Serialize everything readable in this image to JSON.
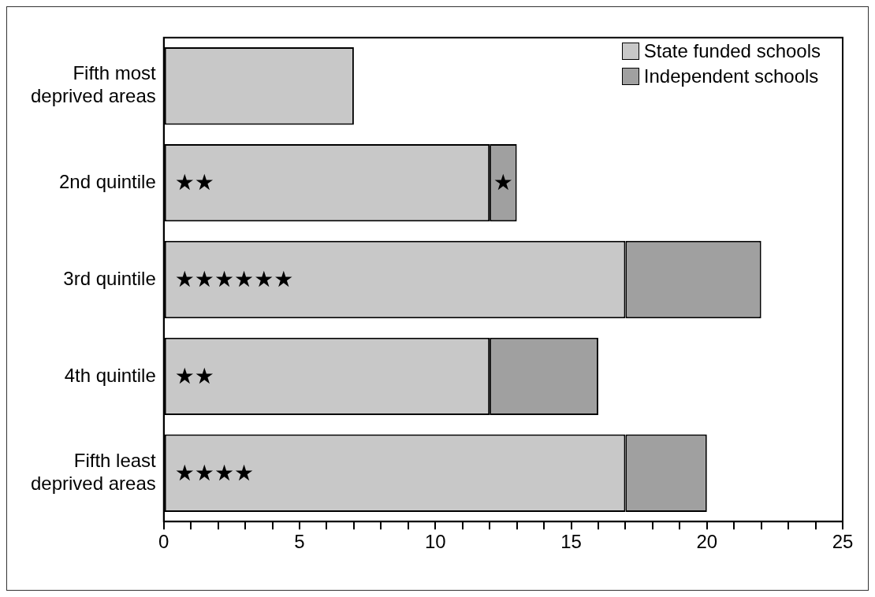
{
  "chart_data": {
    "type": "bar",
    "orientation": "horizontal",
    "stacked": true,
    "categories": [
      "Fifth most deprived areas",
      "2nd quintile",
      "3rd quintile",
      "4th quintile",
      "Fifth least deprived areas"
    ],
    "series": [
      {
        "name": "State funded schools",
        "color": "#c8c8c8",
        "values": [
          7,
          12,
          17,
          12,
          17
        ]
      },
      {
        "name": "Independent schools",
        "color": "#a0a0a0",
        "values": [
          0,
          1,
          5,
          4,
          3
        ]
      }
    ],
    "xlim": [
      0,
      25
    ],
    "xticks": [
      0,
      {
        "value": 1,
        "label": null
      },
      {
        "value": 2,
        "label": null
      },
      {
        "value": 3,
        "label": null
      },
      {
        "value": 4,
        "label": null
      },
      5,
      {
        "value": 6,
        "label": null
      },
      {
        "value": 7,
        "label": null
      },
      {
        "value": 8,
        "label": null
      },
      {
        "value": 9,
        "label": null
      },
      10,
      {
        "value": 11,
        "label": null
      },
      {
        "value": 12,
        "label": null
      },
      {
        "value": 13,
        "label": null
      },
      {
        "value": 14,
        "label": null
      },
      15,
      {
        "value": 16,
        "label": null
      },
      {
        "value": 17,
        "label": null
      },
      {
        "value": 18,
        "label": null
      },
      {
        "value": 19,
        "label": null
      },
      20,
      {
        "value": 21,
        "label": null
      },
      {
        "value": 22,
        "label": null
      },
      {
        "value": 23,
        "label": null
      },
      {
        "value": 24,
        "label": null
      },
      25
    ],
    "annotations": [
      {
        "text": "★★",
        "y": "2nd quintile"
      },
      {
        "text": "★",
        "x": 12.5,
        "y": "2nd quintile"
      },
      {
        "text": "★★★★★★",
        "y": "3rd quintile"
      },
      {
        "text": "★★",
        "y": "4th quintile"
      },
      {
        "text": "★★★★",
        "y": "Fifth least deprived areas"
      }
    ],
    "legend": "top right",
    "grid": false
  }
}
